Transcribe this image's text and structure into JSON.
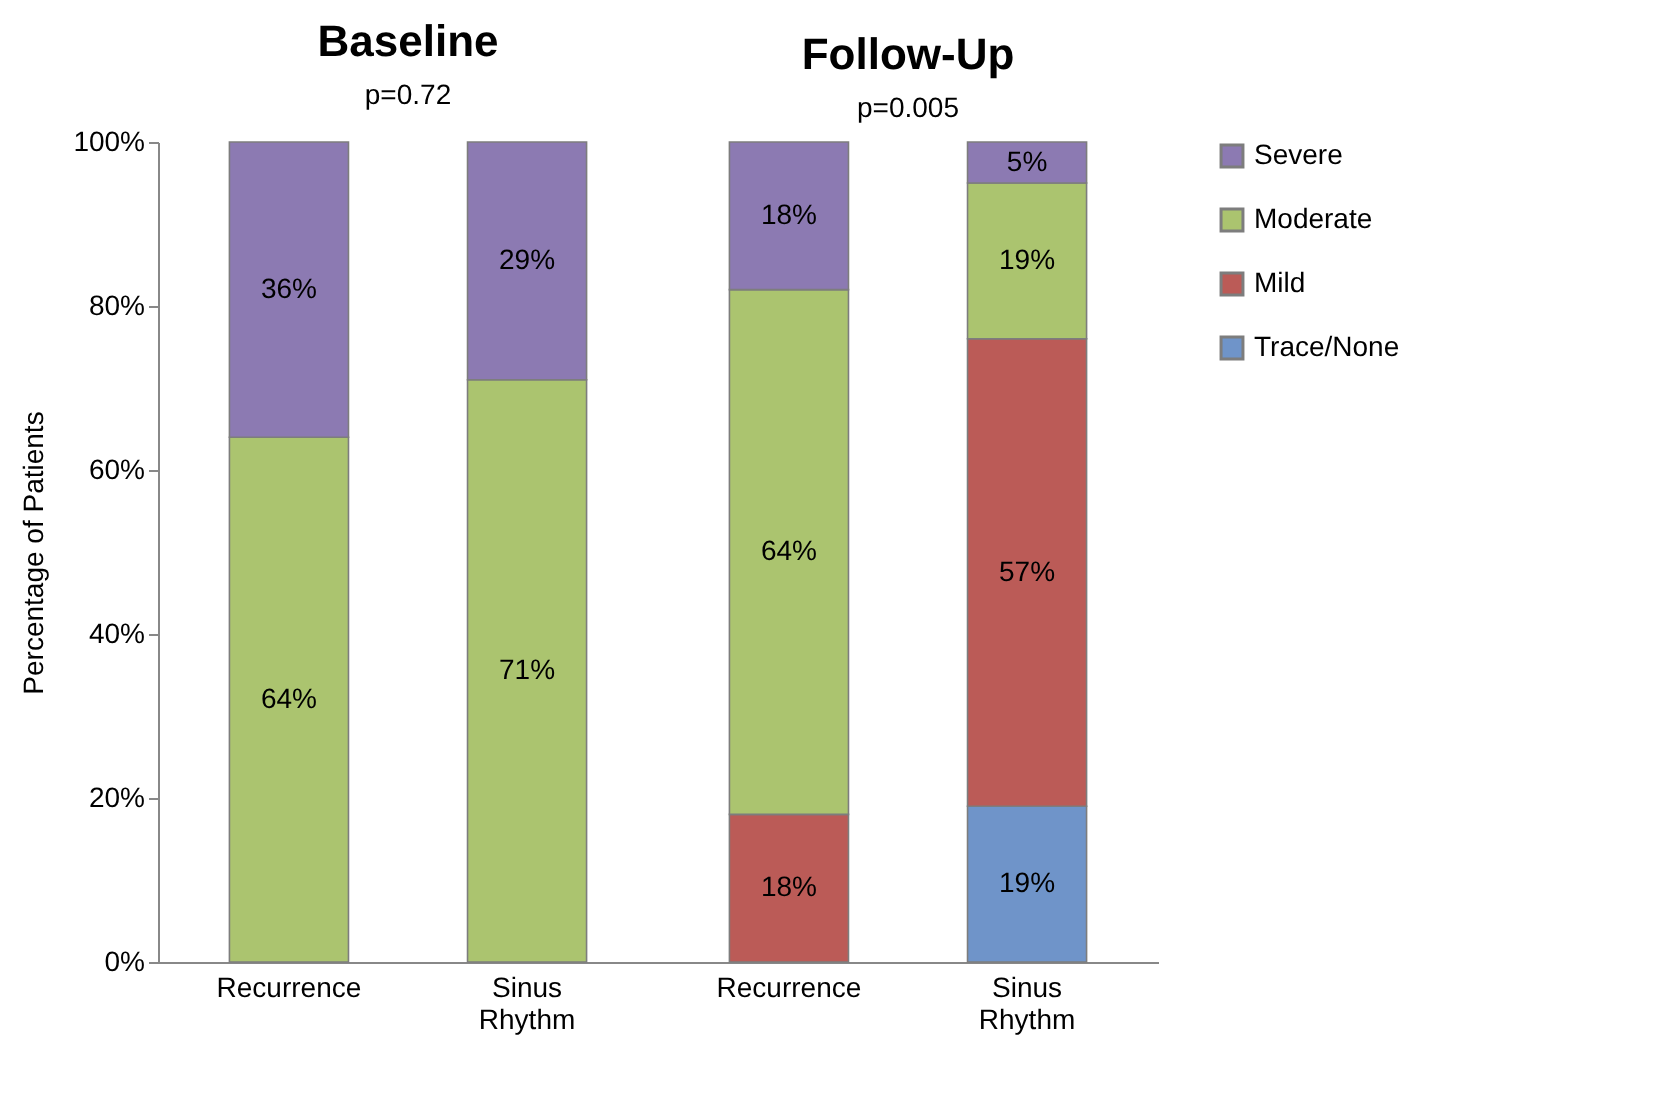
{
  "chart_data": [
    {
      "type": "bar",
      "title": "Baseline",
      "annotations": [
        "p=0.72"
      ],
      "ylabel": "Percentage of Patients",
      "categories": [
        "Recurrence",
        "Sinus Rhythm"
      ],
      "stacked": true,
      "grid": false,
      "ylim": [
        0,
        100
      ],
      "yticks": [
        {
          "value": 0,
          "label": "0%"
        },
        {
          "value": 20,
          "label": "20%"
        },
        {
          "value": 40,
          "label": "40%"
        },
        {
          "value": 60,
          "label": "60%"
        },
        {
          "value": 80,
          "label": "80%"
        },
        {
          "value": 100,
          "label": "100%"
        }
      ],
      "series": [
        {
          "color": "#abc46f",
          "values": [
            64,
            71
          ],
          "value_labels": [
            "64%",
            "71%"
          ]
        },
        {
          "color": "#8c7ab2",
          "values": [
            36,
            29
          ],
          "value_labels": [
            "36%",
            "29%"
          ]
        }
      ]
    },
    {
      "type": "bar",
      "title": "Follow-Up",
      "annotations": [
        "p=0.005"
      ],
      "categories": [
        "Recurrence",
        "Sinus Rhythm"
      ],
      "stacked": true,
      "legend": "right",
      "grid": false,
      "tick_labels": "x",
      "ylim": [
        0,
        100
      ],
      "series": [
        {
          "name": "Trace/None",
          "color": "#6f94c9",
          "values": [
            null,
            19
          ],
          "value_labels": [
            null,
            "19%"
          ]
        },
        {
          "name": "Mild",
          "color": "#bb5b57",
          "values": [
            18,
            57
          ],
          "value_labels": [
            "18%",
            "57%"
          ]
        },
        {
          "name": "Moderate",
          "color": "#abc46f",
          "values": [
            64,
            19
          ],
          "value_labels": [
            "64%",
            "19%"
          ]
        },
        {
          "name": "Severe",
          "color": "#8c7ab2",
          "values": [
            18,
            5
          ],
          "value_labels": [
            "18%",
            "5%"
          ]
        }
      ]
    }
  ]
}
